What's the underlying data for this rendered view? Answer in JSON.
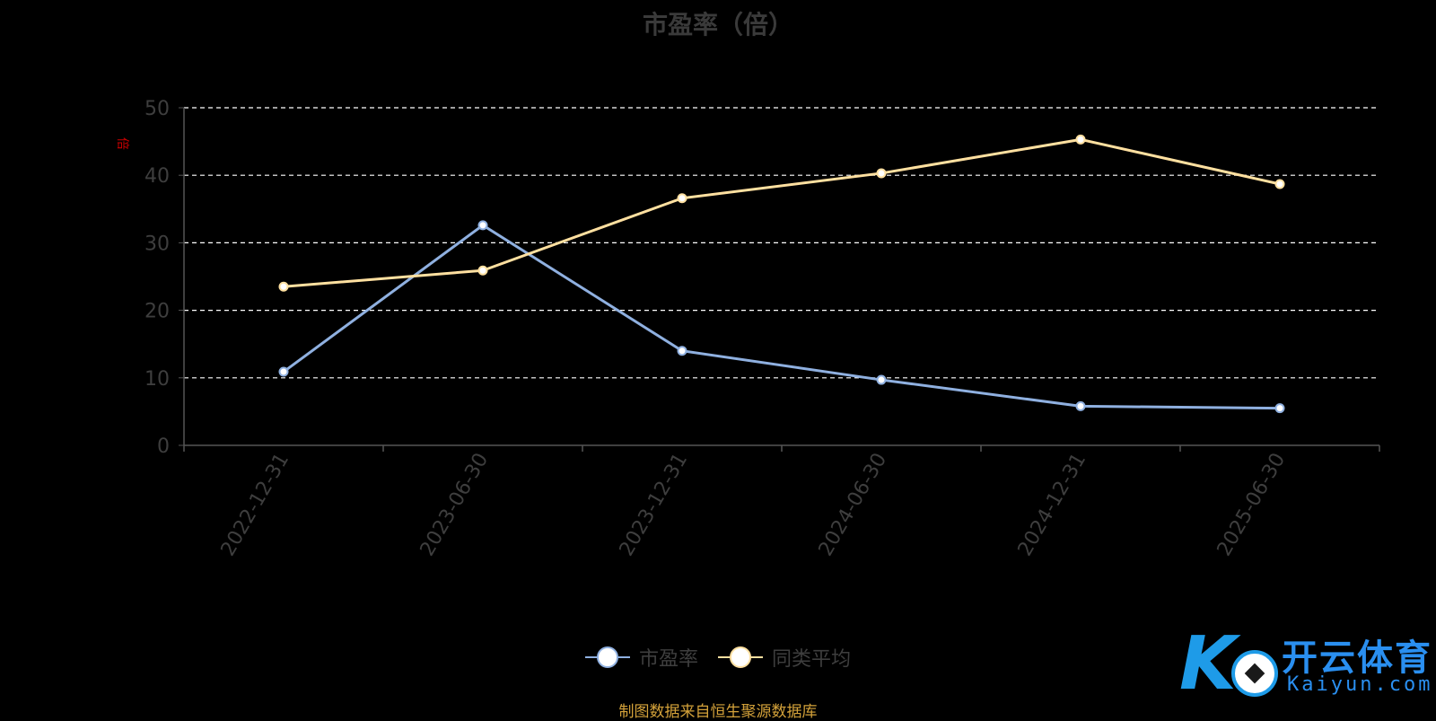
{
  "chart_data": {
    "type": "line",
    "title": "市盈率（倍）",
    "ylabel": "倍",
    "xlabel": "",
    "categories": [
      "2022-12-31",
      "2023-06-30",
      "2023-12-31",
      "2024-06-30",
      "2024-12-31",
      "2025-06-30"
    ],
    "series": [
      {
        "name": "市盈率",
        "values": [
          10.9,
          32.6,
          14.0,
          9.7,
          5.8,
          5.5
        ],
        "color": "#8fb0e0"
      },
      {
        "name": "同类平均",
        "values": [
          23.5,
          25.9,
          36.6,
          40.3,
          45.3,
          38.7
        ],
        "color": "#ffe0a0"
      }
    ],
    "ylim": [
      0,
      50
    ],
    "yticks": [
      "0",
      "10",
      "20",
      "30",
      "40",
      "50"
    ],
    "grid": true,
    "legend_position": "bottom-center"
  },
  "source_note": "制图数据来自恒生聚源数据库",
  "watermark": {
    "name": "开云体育",
    "domain": "Kaiyun.com"
  },
  "colors": {
    "background": "#000000",
    "grid": "#ffffff",
    "axis": "#555555",
    "tick_label": "#3e3e3e",
    "source_note": "#d4a23a",
    "watermark": "#1e9be8"
  }
}
